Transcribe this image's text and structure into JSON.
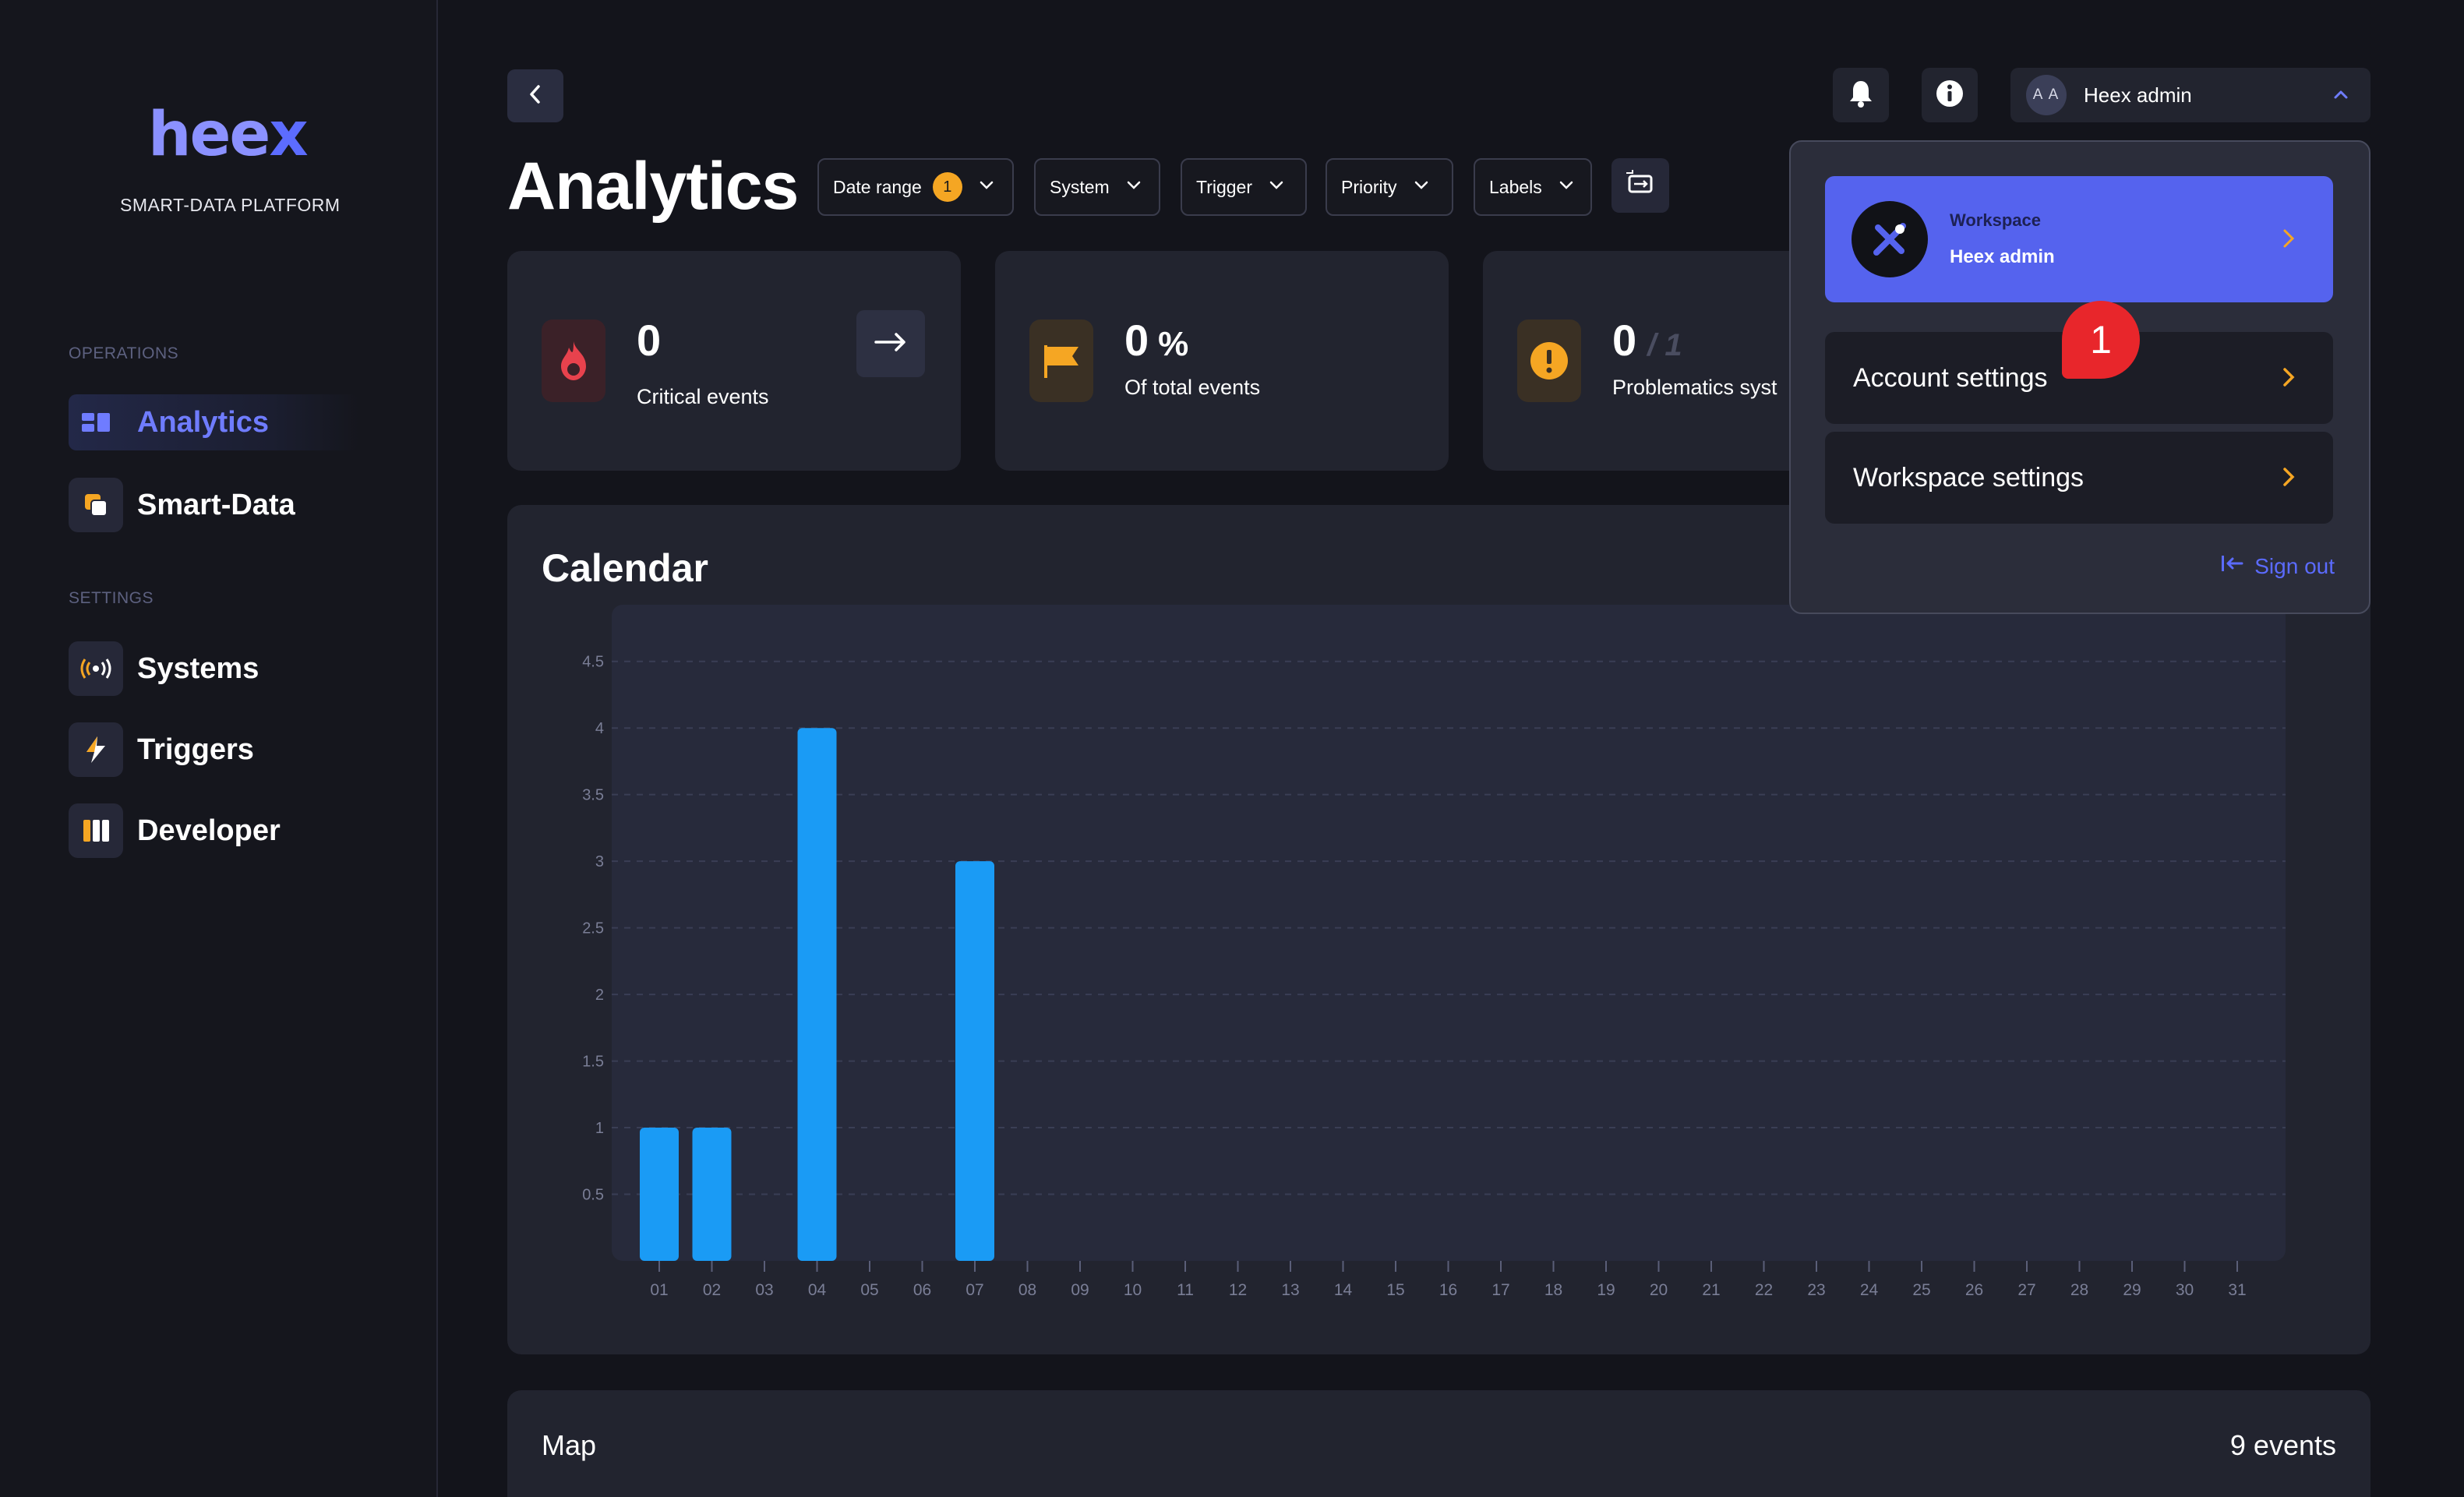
{
  "sidebar": {
    "logo_main": "hee",
    "logo_x": "x",
    "tagline": "SMART-DATA PLATFORM",
    "operations_label": "OPERATIONS",
    "settings_label": "SETTINGS",
    "items": [
      {
        "label": "Analytics",
        "icon": "analytics-icon",
        "active": true
      },
      {
        "label": "Smart-Data",
        "icon": "smart-data-icon",
        "active": false
      },
      {
        "label": "Systems",
        "icon": "broadcast-icon",
        "active": false
      },
      {
        "label": "Triggers",
        "icon": "lightning-icon",
        "active": false
      },
      {
        "label": "Developer",
        "icon": "columns-icon",
        "active": false
      }
    ]
  },
  "header": {
    "title": "Analytics",
    "user_initials": "A A",
    "user_name": "Heex admin"
  },
  "filters": [
    {
      "label": "Date range",
      "badge": "1"
    },
    {
      "label": "System"
    },
    {
      "label": "Trigger"
    },
    {
      "label": "Priority"
    },
    {
      "label": "Labels"
    }
  ],
  "kpis": [
    {
      "value": "0",
      "label": "Critical events",
      "icon": "flame-icon",
      "color": "#e8424d"
    },
    {
      "value": "0",
      "unit": "%",
      "label": "Of total events",
      "icon": "flag-icon",
      "color": "#f5a623"
    },
    {
      "value": "0",
      "total": "/ 1",
      "label": "Problematics syst",
      "icon": "warning-icon",
      "color": "#f5a623"
    }
  ],
  "calendar": {
    "title": "Calendar"
  },
  "chart_data": {
    "type": "bar",
    "categories": [
      "01",
      "02",
      "03",
      "04",
      "05",
      "06",
      "07",
      "08",
      "09",
      "10",
      "11",
      "12",
      "13",
      "14",
      "15",
      "16",
      "17",
      "18",
      "19",
      "20",
      "21",
      "22",
      "23",
      "24",
      "25",
      "26",
      "27",
      "28",
      "29",
      "30",
      "31"
    ],
    "values": [
      1,
      1,
      0,
      4,
      0,
      0,
      3,
      0,
      0,
      0,
      0,
      0,
      0,
      0,
      0,
      0,
      0,
      0,
      0,
      0,
      0,
      0,
      0,
      0,
      0,
      0,
      0,
      0,
      0,
      0,
      0
    ],
    "y_ticks": [
      "0.5",
      "1",
      "1.5",
      "2",
      "2.5",
      "3",
      "3.5",
      "4",
      "4.5"
    ],
    "ylim": [
      0,
      4.75
    ],
    "grid": true,
    "bar_color": "#1a9bf5"
  },
  "map": {
    "title": "Map",
    "count": "9 events"
  },
  "dropdown": {
    "workspace_label": "Workspace",
    "workspace_name": "Heex admin",
    "account_settings": "Account settings",
    "workspace_settings": "Workspace settings",
    "sign_out": "Sign out",
    "notification_count": "1"
  }
}
